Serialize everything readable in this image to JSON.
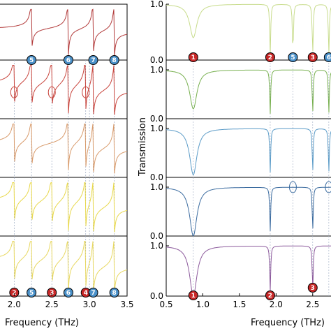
{
  "chart_data": [
    {
      "type": "line",
      "panel": "left",
      "xlabel": "Frequency (THz)",
      "xlim": [
        1.7,
        3.5
      ],
      "x_ticks": [
        "2.0",
        "2.5",
        "3.0",
        "3.5"
      ],
      "x_tick_values": [
        2.0,
        2.5,
        3.0,
        3.5
      ],
      "mode_lines": [
        2.0,
        2.23,
        2.5,
        2.72,
        2.95,
        3.0,
        3.05,
        3.33
      ],
      "subplots": [
        {
          "color": "#b23a3a",
          "resonances": [
            2.23,
            2.72,
            3.05,
            3.33
          ],
          "markers": [
            {
              "label": "5",
              "x": 2.23,
              "color": "#4a90c8"
            },
            {
              "label": "6",
              "x": 2.72,
              "color": "#4a90c8"
            },
            {
              "label": "7",
              "x": 3.05,
              "color": "#4a90c8"
            },
            {
              "label": "8",
              "x": 3.33,
              "color": "#4a90c8"
            }
          ]
        },
        {
          "color": "#c8443c",
          "resonances": [
            2.0,
            2.23,
            2.5,
            2.72,
            2.95,
            3.05,
            3.33
          ],
          "circled": [
            2.0,
            2.5,
            2.95
          ]
        },
        {
          "color": "#d89a6a",
          "resonances": [
            2.0,
            2.23,
            2.72,
            2.95,
            3.05,
            3.33
          ]
        },
        {
          "color": "#e8d84a",
          "resonances": [
            2.0,
            2.23,
            2.5,
            2.72,
            2.95,
            3.05,
            3.33
          ]
        },
        {
          "color": "#e8d860",
          "resonances": [
            2.0,
            2.23,
            2.5,
            2.72,
            2.95,
            3.05,
            3.33
          ],
          "markers": [
            {
              "label": "2",
              "x": 2.0,
              "color": "#c82828"
            },
            {
              "label": "5",
              "x": 2.23,
              "color": "#4a90c8"
            },
            {
              "label": "3",
              "x": 2.5,
              "color": "#c82828"
            },
            {
              "label": "6",
              "x": 2.72,
              "color": "#4a90c8"
            },
            {
              "label": "4",
              "x": 2.95,
              "color": "#c82828"
            },
            {
              "label": "7",
              "x": 3.05,
              "color": "#4a90c8"
            },
            {
              "label": "8",
              "x": 3.33,
              "color": "#4a90c8"
            }
          ]
        }
      ]
    },
    {
      "type": "line",
      "panel": "right",
      "xlabel": "Frequency (THz)",
      "ylabel": "Transmission",
      "xlim": [
        0.5,
        2.75
      ],
      "ylim": [
        0.0,
        1.0
      ],
      "x_ticks": [
        "0.5",
        "1.0",
        "1.5",
        "2.0",
        "2.5"
      ],
      "x_tick_values": [
        0.5,
        1.0,
        1.5,
        2.0,
        2.5
      ],
      "y_ticks": [
        "0.0",
        "1.0"
      ],
      "mode_lines": [
        0.87,
        1.92,
        2.23,
        2.5,
        2.72
      ],
      "subplots": [
        {
          "color": "#c8dc8c",
          "main_dip": {
            "x": 0.87,
            "depth": 0.6
          },
          "sharp": [
            1.92,
            2.23,
            2.5,
            2.72
          ],
          "markers": [
            {
              "label": "1",
              "x": 0.87,
              "color": "#c82828"
            },
            {
              "label": "2",
              "x": 1.92,
              "color": "#c82828"
            },
            {
              "label": "5",
              "x": 2.23,
              "color": "#4a90c8"
            },
            {
              "label": "3",
              "x": 2.5,
              "color": "#c82828"
            },
            {
              "label": "6",
              "x": 2.72,
              "color": "#4a90c8"
            }
          ]
        },
        {
          "color": "#78b050",
          "main_dip": {
            "x": 0.87,
            "depth": 0.8
          },
          "sharp": [
            1.92,
            2.5,
            2.72
          ]
        },
        {
          "color": "#5c9cc8",
          "main_dip": {
            "x": 0.87,
            "depth": 0.95
          },
          "sharp": [
            1.92,
            2.5,
            2.72
          ]
        },
        {
          "color": "#3c6ca0",
          "main_dip": {
            "x": 0.87,
            "depth": 1.0
          },
          "sharp": [
            1.92,
            2.5
          ],
          "circled": [
            2.23,
            2.72
          ]
        },
        {
          "color": "#8c5a9c",
          "main_dip": {
            "x": 0.87,
            "depth": 1.0
          },
          "sharp": [
            1.92,
            2.5
          ],
          "markers": [
            {
              "label": "1",
              "x": 0.87,
              "color": "#c82828"
            },
            {
              "label": "2",
              "x": 1.92,
              "color": "#c82828"
            },
            {
              "label": "3",
              "x": 2.5,
              "color": "#c82828"
            }
          ]
        }
      ]
    }
  ]
}
